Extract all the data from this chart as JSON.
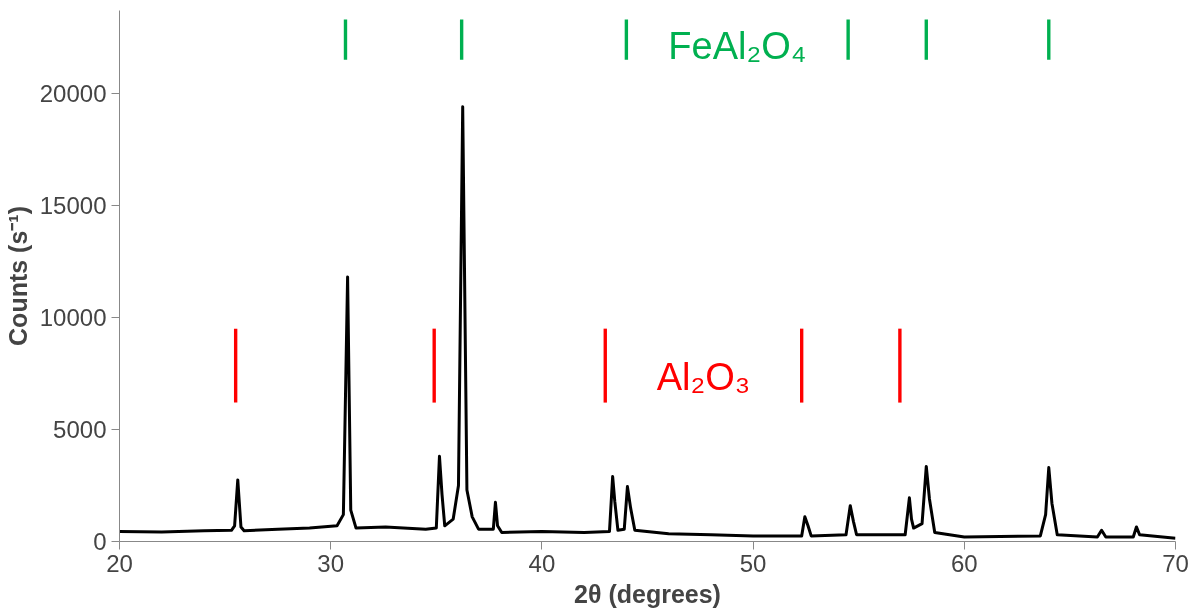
{
  "chart_data": {
    "type": "line",
    "xlabel": "2θ (degrees)",
    "ylabel": "Counts (s⁻¹)",
    "xlim": [
      20,
      70
    ],
    "xticks": [
      20,
      30,
      40,
      50,
      60,
      70
    ],
    "ylim": [
      0,
      23700
    ],
    "yticks": [
      0,
      5000,
      10000,
      15000,
      20000
    ],
    "grid": false,
    "marker": "none",
    "line_style": "solid",
    "series": [
      {
        "color": "#000000",
        "x": [
          20.0,
          22,
          24,
          25.3,
          25.45,
          25.6,
          25.75,
          25.9,
          27.5,
          29,
          30.3,
          30.6,
          30.8,
          30.95,
          31.2,
          32.6,
          34.5,
          35.0,
          35.15,
          35.27,
          35.4,
          35.8,
          36.05,
          36.25,
          36.45,
          36.7,
          37.0,
          37.7,
          37.8,
          37.9,
          38.1,
          40,
          42,
          43.2,
          43.35,
          43.45,
          43.6,
          43.9,
          44.05,
          44.2,
          44.4,
          46,
          48,
          50,
          52.3,
          52.45,
          52.6,
          52.75,
          54.4,
          54.6,
          54.75,
          54.9,
          57.2,
          57.4,
          57.5,
          57.6,
          58.0,
          58.2,
          58.35,
          58.6,
          60,
          63.6,
          63.85,
          64.0,
          64.15,
          64.4,
          66.3,
          66.5,
          66.7,
          68.0,
          68.15,
          68.3,
          70
        ],
        "values": [
          450,
          420,
          480,
          500,
          700,
          2750,
          650,
          480,
          550,
          600,
          700,
          1200,
          11800,
          1400,
          600,
          650,
          550,
          600,
          3800,
          2100,
          700,
          1000,
          2500,
          19400,
          2300,
          1100,
          550,
          550,
          1750,
          700,
          400,
          450,
          400,
          450,
          2900,
          1800,
          500,
          550,
          2450,
          1500,
          500,
          350,
          300,
          250,
          250,
          1100,
          700,
          250,
          300,
          1600,
          900,
          300,
          300,
          1950,
          1000,
          600,
          800,
          3350,
          1900,
          400,
          200,
          250,
          1200,
          3300,
          1700,
          300,
          200,
          500,
          200,
          200,
          650,
          300,
          150
        ]
      },
      {
        "type": "bar",
        "name": "FeAl₂O₄",
        "color": "#00b050",
        "x": [
          30.7,
          36.2,
          44.0,
          54.5,
          58.2,
          64.0
        ],
        "base": [
          21500,
          21500,
          21500,
          21500,
          21500,
          21500
        ],
        "values": [
          1800,
          1800,
          1800,
          1800,
          1800,
          1800
        ]
      },
      {
        "type": "bar",
        "name": "Al₂O₃",
        "color": "#ff0000",
        "x": [
          25.5,
          34.9,
          43.0,
          52.3,
          56.95
        ],
        "base": [
          6200,
          6200,
          6200,
          6200,
          6200
        ],
        "values": [
          3300,
          3300,
          3300,
          3300,
          3300
        ]
      }
    ]
  }
}
